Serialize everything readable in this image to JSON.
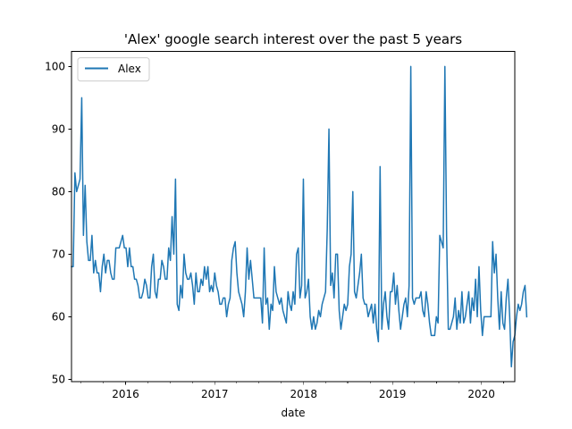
{
  "chart_data": {
    "type": "line",
    "title": "'Alex' google search interest over the past 5 years",
    "xlabel": "date",
    "ylabel": "",
    "legend": {
      "placement": "upper-left"
    },
    "grid": false,
    "xlim": [
      "2015-05-24",
      "2020-05-17"
    ],
    "ylim": [
      49.6,
      102.4
    ],
    "x_tick_labels": [
      "2016",
      "2017",
      "2018",
      "2019",
      "2020"
    ],
    "x_tick_dates": [
      "2016-01-01",
      "2017-01-01",
      "2018-01-01",
      "2019-01-01",
      "2020-01-01"
    ],
    "y_ticks": [
      50,
      60,
      70,
      80,
      90,
      100
    ],
    "series": [
      {
        "name": "Alex",
        "color": "#1f77b4",
        "x_start": "2015-05-24",
        "frequency": "weekly",
        "values": [
          68,
          68,
          83,
          80,
          81,
          82,
          95,
          73,
          81,
          72,
          69,
          69,
          73,
          67,
          69,
          67,
          67,
          64,
          68,
          70,
          67,
          69,
          69,
          67,
          66,
          66,
          71,
          71,
          71,
          72,
          73,
          71,
          71,
          68,
          71,
          68,
          68,
          66,
          66,
          65,
          63,
          63,
          64,
          66,
          65,
          63,
          63,
          68,
          70,
          64,
          63,
          66,
          66,
          69,
          68,
          66,
          66,
          71,
          69,
          76,
          70,
          82,
          62,
          61,
          65,
          63,
          70,
          67,
          66,
          66,
          67,
          65,
          62,
          67,
          64,
          64,
          66,
          65,
          68,
          66,
          68,
          64,
          65,
          64,
          67,
          65,
          64,
          62,
          62,
          63,
          63,
          60,
          62,
          63,
          69,
          71,
          72,
          67,
          64,
          63,
          62,
          60,
          64,
          71,
          66,
          69,
          66,
          63,
          63,
          63,
          63,
          63,
          59,
          71,
          62,
          63,
          58,
          62,
          61,
          68,
          64,
          63,
          62,
          63,
          61,
          60,
          59,
          64,
          62,
          61,
          64,
          62,
          70,
          71,
          63,
          65,
          82,
          63,
          64,
          66,
          60,
          58,
          60,
          58,
          59,
          61,
          60,
          62,
          63,
          64,
          74,
          90,
          65,
          67,
          63,
          70,
          70,
          61,
          58,
          60,
          62,
          61,
          62,
          68,
          70,
          80,
          64,
          63,
          65,
          67,
          70,
          63,
          62,
          62,
          60,
          61,
          62,
          59,
          62,
          58,
          56,
          84,
          58,
          62,
          64,
          60,
          58,
          64,
          64,
          67,
          62,
          65,
          61,
          58,
          60,
          62,
          63,
          60,
          65,
          100,
          63,
          62,
          63,
          63,
          63,
          64,
          61,
          60,
          64,
          62,
          59,
          57,
          57,
          57,
          60,
          59,
          73,
          72,
          71,
          100,
          73,
          58,
          58,
          59,
          60,
          63,
          58,
          61,
          59,
          64,
          59,
          60,
          62,
          64,
          59,
          63,
          61,
          66,
          60,
          68,
          61,
          57,
          60,
          60,
          60,
          60,
          60,
          72,
          67,
          70,
          63,
          58,
          64,
          59,
          58,
          63,
          66,
          60,
          52,
          56,
          57,
          60,
          62,
          61,
          62,
          64,
          65,
          60
        ]
      }
    ]
  }
}
